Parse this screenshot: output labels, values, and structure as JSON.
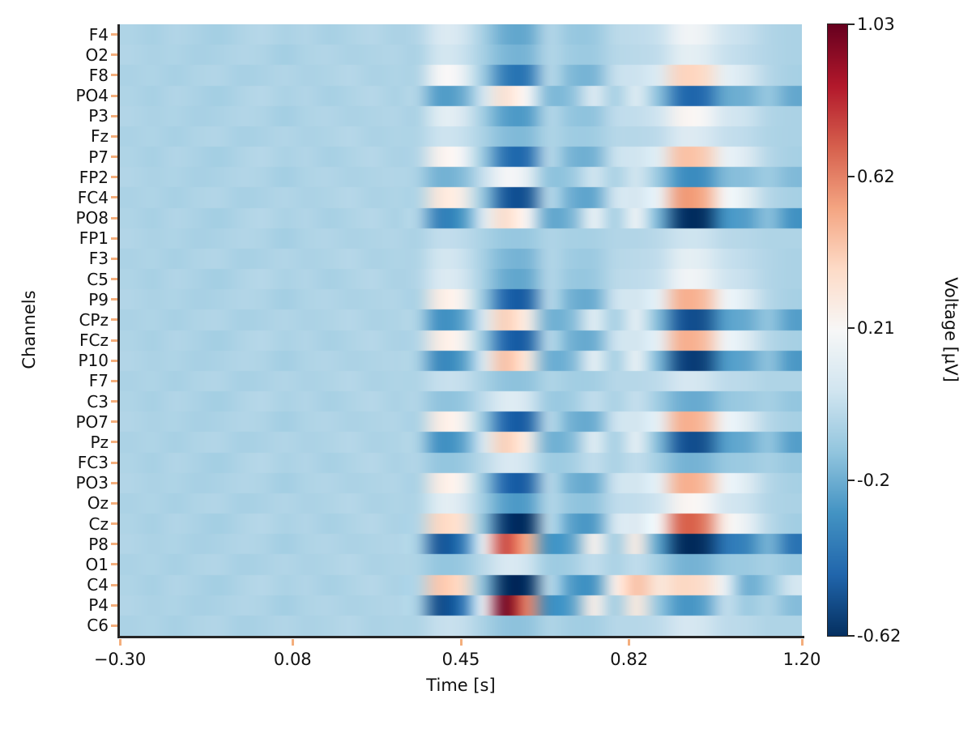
{
  "chart_data": {
    "type": "heatmap",
    "title": "",
    "xlabel": "Time [s]",
    "ylabel": "Channels",
    "colorbar_label": "Voltage [µV]",
    "x_range": [
      -0.3,
      1.2
    ],
    "x_ticks": {
      "values": [
        -0.3,
        0.08,
        0.45,
        0.82,
        1.2
      ],
      "labels": [
        "−0.30",
        "0.08",
        "0.45",
        "0.82",
        "1.20"
      ]
    },
    "channels": [
      "F4",
      "O2",
      "F8",
      "PO4",
      "P3",
      "Fz",
      "P7",
      "FP2",
      "FC4",
      "PO8",
      "FP1",
      "F3",
      "C5",
      "P9",
      "CPz",
      "FCz",
      "P10",
      "F7",
      "C3",
      "PO7",
      "Pz",
      "FC3",
      "PO3",
      "Oz",
      "Cz",
      "P8",
      "O1",
      "C4",
      "P4",
      "C6"
    ],
    "time": [
      -0.3,
      -0.25,
      -0.2,
      -0.15,
      -0.1,
      -0.05,
      0,
      0.05,
      0.1,
      0.15,
      0.2,
      0.25,
      0.3,
      0.35,
      0.4,
      0.45,
      0.5,
      0.55,
      0.6,
      0.65,
      0.7,
      0.75,
      0.8,
      0.85,
      0.9,
      0.95,
      1,
      1.05,
      1.1,
      1.15,
      1.2
    ],
    "values": [
      [
        -0.05,
        -0.07,
        -0.04,
        -0.06,
        -0.08,
        -0.05,
        -0.03,
        -0.06,
        -0.04,
        -0.07,
        -0.05,
        -0.03,
        -0.06,
        -0.04,
        0.08,
        0.06,
        -0.07,
        -0.21,
        -0.22,
        -0.04,
        -0.11,
        -0.11,
        -0.02,
        -0.01,
        0.02,
        0.17,
        0.16,
        0.04,
        0.01,
        -0.04,
        -0.06
      ],
      [
        -0.04,
        -0.06,
        -0.05,
        -0.07,
        -0.06,
        -0.04,
        -0.05,
        -0.08,
        -0.05,
        -0.04,
        -0.06,
        -0.05,
        -0.04,
        -0.06,
        0.05,
        0.03,
        -0.07,
        -0.17,
        -0.18,
        -0.04,
        -0.09,
        -0.1,
        -0.03,
        -0.02,
        0,
        0.12,
        0.11,
        0.02,
        -0.01,
        -0.04,
        -0.06
      ],
      [
        -0.06,
        -0.05,
        -0.07,
        -0.05,
        -0.04,
        -0.07,
        -0.06,
        -0.04,
        -0.06,
        -0.05,
        -0.03,
        -0.06,
        -0.05,
        -0.05,
        0.21,
        0.17,
        -0.09,
        -0.37,
        -0.39,
        -0.03,
        -0.16,
        -0.18,
        0.01,
        0.03,
        0.09,
        0.39,
        0.37,
        0.13,
        0.07,
        -0.03,
        -0.07
      ],
      [
        -0.05,
        -0.07,
        -0.04,
        -0.06,
        -0.08,
        -0.05,
        -0.03,
        -0.06,
        -0.04,
        -0.07,
        -0.05,
        -0.03,
        -0.06,
        -0.04,
        -0.26,
        -0.22,
        0.04,
        0.33,
        0.21,
        -0.16,
        -0.14,
        0.09,
        -0.07,
        0.1,
        -0.14,
        -0.43,
        -0.44,
        -0.22,
        -0.19,
        -0.11,
        -0.22
      ],
      [
        -0.04,
        -0.06,
        -0.05,
        -0.07,
        -0.06,
        -0.04,
        -0.05,
        -0.08,
        -0.05,
        -0.04,
        -0.06,
        -0.05,
        -0.04,
        -0.06,
        0.11,
        0.09,
        -0.08,
        -0.25,
        -0.26,
        -0.04,
        -0.12,
        -0.13,
        -0.01,
        0,
        0.04,
        0.23,
        0.21,
        0.06,
        0.03,
        -0.04,
        -0.06
      ],
      [
        -0.06,
        -0.05,
        -0.07,
        -0.05,
        -0.04,
        -0.07,
        -0.06,
        -0.04,
        -0.06,
        -0.05,
        -0.03,
        -0.06,
        -0.05,
        -0.05,
        0.03,
        0.02,
        -0.06,
        -0.15,
        -0.16,
        -0.05,
        -0.09,
        -0.09,
        -0.03,
        -0.03,
        -0.01,
        0.09,
        0.08,
        0.01,
        -0.01,
        -0.05,
        -0.06
      ],
      [
        -0.05,
        -0.07,
        -0.04,
        -0.06,
        -0.08,
        -0.05,
        -0.03,
        -0.06,
        -0.04,
        -0.07,
        -0.05,
        -0.03,
        -0.06,
        -0.04,
        0.24,
        0.2,
        -0.1,
        -0.41,
        -0.43,
        -0.03,
        -0.18,
        -0.19,
        0.02,
        0.04,
        0.11,
        0.45,
        0.42,
        0.15,
        0.09,
        -0.03,
        -0.07
      ],
      [
        -0.04,
        -0.06,
        -0.05,
        -0.07,
        -0.06,
        -0.04,
        -0.05,
        -0.08,
        -0.05,
        -0.04,
        -0.06,
        -0.05,
        -0.04,
        -0.06,
        -0.19,
        -0.16,
        0.01,
        0.2,
        0.13,
        -0.13,
        -0.11,
        0.04,
        -0.06,
        0.05,
        -0.11,
        -0.3,
        -0.31,
        -0.16,
        -0.14,
        -0.09,
        -0.16
      ],
      [
        -0.06,
        -0.05,
        -0.07,
        -0.05,
        -0.04,
        -0.07,
        -0.06,
        -0.04,
        -0.06,
        -0.05,
        -0.03,
        -0.06,
        -0.05,
        -0.05,
        0.3,
        0.26,
        -0.11,
        -0.49,
        -0.51,
        -0.03,
        -0.2,
        -0.23,
        0.04,
        0.06,
        0.15,
        0.56,
        0.52,
        0.19,
        0.12,
        -0.03,
        -0.07
      ],
      [
        -0.05,
        -0.07,
        -0.04,
        -0.06,
        -0.08,
        -0.05,
        -0.03,
        -0.06,
        -0.04,
        -0.07,
        -0.05,
        -0.03,
        -0.06,
        -0.04,
        -0.36,
        -0.29,
        0.08,
        0.35,
        0.22,
        -0.22,
        -0.18,
        0.15,
        -0.07,
        0.17,
        -0.18,
        -0.6,
        -0.62,
        -0.29,
        -0.25,
        -0.14,
        -0.29
      ],
      [
        -0.04,
        -0.06,
        -0.05,
        -0.07,
        -0.06,
        -0.04,
        -0.05,
        -0.08,
        -0.05,
        -0.04,
        -0.06,
        -0.05,
        -0.04,
        -0.06,
        0,
        -0.01,
        -0.06,
        -0.11,
        -0.11,
        -0.05,
        -0.07,
        -0.07,
        -0.04,
        -0.04,
        -0.02,
        0.03,
        0.03,
        -0.02,
        -0.03,
        -0.05,
        -0.05
      ],
      [
        -0.06,
        -0.05,
        -0.07,
        -0.05,
        -0.04,
        -0.07,
        -0.06,
        -0.04,
        -0.06,
        -0.05,
        -0.03,
        -0.06,
        -0.05,
        -0.05,
        0.05,
        0.03,
        -0.07,
        -0.17,
        -0.18,
        -0.04,
        -0.09,
        -0.1,
        -0.03,
        -0.02,
        0,
        0.12,
        0.11,
        0.02,
        -0.01,
        -0.04,
        -0.06
      ],
      [
        -0.05,
        -0.07,
        -0.04,
        -0.06,
        -0.08,
        -0.05,
        -0.03,
        -0.06,
        -0.04,
        -0.07,
        -0.05,
        -0.03,
        -0.06,
        -0.04,
        0.08,
        0.06,
        -0.07,
        -0.21,
        -0.22,
        -0.04,
        -0.11,
        -0.11,
        -0.02,
        -0.01,
        0.02,
        0.17,
        0.16,
        0.04,
        0.01,
        -0.04,
        -0.06
      ],
      [
        -0.04,
        -0.06,
        -0.05,
        -0.07,
        -0.06,
        -0.04,
        -0.05,
        -0.08,
        -0.05,
        -0.04,
        -0.06,
        -0.05,
        -0.04,
        -0.06,
        0.27,
        0.23,
        -0.1,
        -0.45,
        -0.47,
        -0.03,
        -0.19,
        -0.21,
        0.03,
        0.05,
        0.13,
        0.5,
        0.47,
        0.17,
        0.1,
        -0.03,
        -0.07
      ],
      [
        -0.06,
        -0.05,
        -0.07,
        -0.05,
        -0.04,
        -0.07,
        -0.06,
        -0.04,
        -0.06,
        -0.05,
        -0.03,
        -0.06,
        -0.05,
        -0.05,
        -0.3,
        -0.25,
        0.06,
        0.4,
        0.27,
        -0.19,
        -0.16,
        0.11,
        -0.07,
        0.13,
        -0.16,
        -0.5,
        -0.52,
        -0.25,
        -0.21,
        -0.12,
        -0.25
      ],
      [
        -0.05,
        -0.07,
        -0.04,
        -0.06,
        -0.08,
        -0.05,
        -0.03,
        -0.06,
        -0.04,
        -0.07,
        -0.05,
        -0.03,
        -0.06,
        -0.04,
        0.27,
        0.23,
        -0.1,
        -0.45,
        -0.47,
        -0.03,
        -0.19,
        -0.21,
        0.03,
        0.05,
        0.13,
        0.5,
        0.47,
        0.17,
        0.1,
        -0.03,
        -0.07
      ],
      [
        -0.04,
        -0.06,
        -0.05,
        -0.07,
        -0.06,
        -0.04,
        -0.05,
        -0.08,
        -0.05,
        -0.04,
        -0.06,
        -0.05,
        -0.04,
        -0.06,
        -0.33,
        -0.27,
        0.07,
        0.45,
        0.3,
        -0.2,
        -0.17,
        0.13,
        -0.07,
        0.15,
        -0.17,
        -0.55,
        -0.57,
        -0.27,
        -0.23,
        -0.13,
        -0.27
      ],
      [
        -0.06,
        -0.05,
        -0.07,
        -0.05,
        -0.04,
        -0.07,
        -0.06,
        -0.04,
        -0.06,
        -0.05,
        -0.03,
        -0.06,
        -0.05,
        -0.05,
        0.01,
        0.01,
        -0.06,
        -0.13,
        -0.13,
        -0.05,
        -0.08,
        -0.08,
        -0.03,
        -0.03,
        -0.01,
        0.06,
        0.05,
        -0.01,
        -0.02,
        -0.05,
        -0.05
      ],
      [
        -0.05,
        -0.07,
        -0.04,
        -0.06,
        -0.08,
        -0.05,
        -0.03,
        -0.06,
        -0.04,
        -0.07,
        -0.05,
        -0.03,
        -0.06,
        -0.04,
        -0.13,
        -0.12,
        -0.01,
        0.1,
        0.06,
        -0.1,
        -0.09,
        0,
        -0.06,
        0.01,
        -0.09,
        -0.2,
        -0.21,
        -0.12,
        -0.1,
        -0.07,
        -0.12
      ],
      [
        -0.04,
        -0.06,
        -0.05,
        -0.07,
        -0.06,
        -0.04,
        -0.05,
        -0.08,
        -0.05,
        -0.04,
        -0.06,
        -0.05,
        -0.04,
        -0.06,
        0.27,
        0.23,
        -0.1,
        -0.45,
        -0.47,
        -0.03,
        -0.19,
        -0.21,
        0.03,
        0.05,
        0.13,
        0.5,
        0.47,
        0.17,
        0.1,
        -0.03,
        -0.07
      ],
      [
        -0.06,
        -0.05,
        -0.07,
        -0.05,
        -0.04,
        -0.07,
        -0.06,
        -0.04,
        -0.06,
        -0.05,
        -0.03,
        -0.06,
        -0.05,
        -0.05,
        -0.3,
        -0.25,
        0.06,
        0.4,
        0.27,
        -0.19,
        -0.16,
        0.11,
        -0.07,
        0.13,
        -0.16,
        -0.5,
        -0.52,
        -0.25,
        -0.21,
        -0.12,
        -0.25
      ],
      [
        -0.05,
        -0.07,
        -0.04,
        -0.06,
        -0.08,
        -0.05,
        -0.03,
        -0.06,
        -0.04,
        -0.07,
        -0.05,
        -0.03,
        -0.06,
        -0.04,
        -0.12,
        -0.11,
        -0.02,
        0.08,
        0.04,
        -0.09,
        -0.08,
        0,
        -0.06,
        0,
        -0.08,
        -0.18,
        -0.18,
        -0.11,
        -0.1,
        -0.07,
        -0.11
      ],
      [
        -0.04,
        -0.06,
        -0.05,
        -0.07,
        -0.06,
        -0.04,
        -0.05,
        -0.08,
        -0.05,
        -0.04,
        -0.06,
        -0.05,
        -0.04,
        -0.06,
        0.27,
        0.23,
        -0.1,
        -0.45,
        -0.47,
        -0.03,
        -0.19,
        -0.21,
        0.03,
        0.05,
        0.13,
        0.5,
        0.47,
        0.17,
        0.1,
        -0.03,
        -0.07
      ],
      [
        -0.06,
        -0.05,
        -0.07,
        -0.05,
        -0.04,
        -0.07,
        -0.06,
        -0.04,
        -0.06,
        -0.05,
        -0.03,
        -0.06,
        -0.05,
        -0.05,
        0.11,
        0.09,
        -0.08,
        -0.25,
        -0.26,
        -0.04,
        -0.12,
        -0.13,
        -0.01,
        0,
        0.04,
        0.23,
        0.21,
        0.06,
        0.03,
        -0.04,
        -0.06
      ],
      [
        -0.05,
        -0.07,
        -0.04,
        -0.06,
        -0.08,
        -0.05,
        -0.03,
        -0.06,
        -0.04,
        -0.07,
        -0.05,
        -0.03,
        -0.06,
        -0.04,
        0.38,
        0.33,
        -0.12,
        -0.59,
        -0.62,
        -0.02,
        -0.24,
        -0.27,
        0.06,
        0.09,
        0.19,
        0.69,
        0.65,
        0.25,
        0.15,
        -0.02,
        -0.08
      ],
      [
        -0.04,
        -0.06,
        -0.05,
        -0.07,
        -0.06,
        -0.04,
        -0.05,
        -0.08,
        -0.05,
        -0.04,
        -0.06,
        -0.05,
        -0.04,
        -0.06,
        -0.5,
        -0.4,
        0.14,
        0.75,
        0.51,
        -0.29,
        -0.24,
        0.24,
        -0.08,
        0.27,
        -0.24,
        -0.62,
        -0.62,
        -0.4,
        -0.34,
        -0.18,
        -0.4
      ],
      [
        -0.06,
        -0.05,
        -0.07,
        -0.05,
        -0.04,
        -0.07,
        -0.06,
        -0.04,
        -0.06,
        -0.05,
        -0.03,
        -0.06,
        -0.05,
        -0.05,
        -0.12,
        -0.11,
        -0.02,
        0.08,
        0.04,
        -0.09,
        -0.08,
        0,
        -0.06,
        0,
        -0.08,
        -0.18,
        -0.18,
        -0.11,
        -0.1,
        -0.07,
        -0.11
      ],
      [
        -0.05,
        -0.07,
        -0.04,
        -0.06,
        -0.08,
        -0.05,
        -0.03,
        -0.06,
        -0.04,
        -0.07,
        -0.05,
        -0.03,
        -0.06,
        -0.04,
        0.43,
        0.37,
        -0.13,
        -0.62,
        -0.62,
        -0.02,
        -0.26,
        -0.29,
        0.25,
        0.45,
        0.3,
        0.38,
        0.35,
        0.15,
        -0.2,
        -0.12,
        0.05
      ],
      [
        -0.04,
        -0.06,
        -0.05,
        -0.07,
        -0.06,
        -0.04,
        -0.05,
        -0.08,
        -0.05,
        -0.04,
        -0.06,
        -0.05,
        -0.04,
        -0.06,
        -0.53,
        -0.42,
        0.15,
        1.0,
        0.62,
        -0.31,
        -0.25,
        0.26,
        -0.08,
        0.29,
        -0.12,
        -0.28,
        -0.25,
        0,
        -0.1,
        -0.05,
        -0.15
      ],
      [
        -0.06,
        -0.05,
        -0.07,
        -0.05,
        -0.04,
        -0.07,
        -0.06,
        -0.04,
        -0.06,
        -0.05,
        -0.03,
        -0.06,
        -0.05,
        -0.05,
        0.01,
        0.01,
        -0.06,
        -0.13,
        -0.13,
        -0.05,
        -0.08,
        -0.08,
        -0.03,
        -0.03,
        -0.01,
        0.06,
        0.05,
        -0.01,
        -0.02,
        -0.05,
        -0.05
      ]
    ],
    "colorbar": {
      "vmin": -0.62,
      "vmax": 1.03,
      "ticks": [
        1.03,
        0.62,
        0.21,
        -0.2,
        -0.62
      ],
      "labels": [
        "1.03",
        "0.62",
        "0.21",
        "-0.2",
        "-0.62"
      ]
    },
    "colormap": {
      "name": "RdBu_r",
      "stops": [
        [
          0.0,
          "#053061"
        ],
        [
          0.1,
          "#2166ac"
        ],
        [
          0.2,
          "#4393c3"
        ],
        [
          0.3,
          "#92c5de"
        ],
        [
          0.4,
          "#d1e5f0"
        ],
        [
          0.5,
          "#f7f7f7"
        ],
        [
          0.6,
          "#fddbc7"
        ],
        [
          0.7,
          "#f4a582"
        ],
        [
          0.8,
          "#d6604d"
        ],
        [
          0.9,
          "#b2182b"
        ],
        [
          1.0,
          "#67001f"
        ]
      ]
    },
    "styles": {
      "background": "#ffffff",
      "spine_color": "#262626",
      "axis_tick_color": "#f4ae7c",
      "colorbar_tick_color": "#262626",
      "text_color": "#111111"
    },
    "legend": {
      "position": "right-colorbar",
      "grid": false
    }
  }
}
